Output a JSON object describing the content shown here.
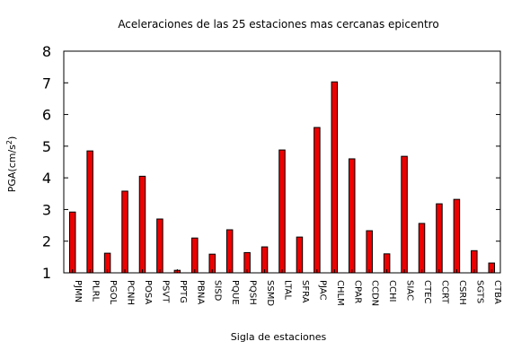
{
  "chart_data": {
    "type": "bar",
    "title": "Aceleraciones de las 25 estaciones mas cercanas epicentro",
    "xlabel": "Sigla de estaciones",
    "ylabel_main": "PGA(cm/s",
    "ylabel_sup": "2",
    "ylabel_close": ")",
    "ylim": [
      1,
      8
    ],
    "yticks": [
      "1",
      "2",
      "3",
      "4",
      "5",
      "6",
      "7",
      "8"
    ],
    "grid": false,
    "bar_color": "#ee0000",
    "categories": [
      "PJMN",
      "PLRL",
      "PGOL",
      "PCNH",
      "POSA",
      "PSVT",
      "PPTG",
      "PBNA",
      "SISD",
      "PQUE",
      "PQSH",
      "SSMD",
      "LTAL",
      "SFRA",
      "PJAC",
      "CHLM",
      "CPAR",
      "CCDN",
      "CCHI",
      "SIAC",
      "CTEC",
      "CCRT",
      "CSRH",
      "SGTS",
      "CTBA"
    ],
    "values": [
      2.92,
      4.85,
      1.62,
      3.58,
      4.05,
      2.7,
      1.08,
      2.1,
      1.59,
      2.36,
      1.64,
      1.82,
      4.88,
      2.13,
      5.59,
      7.03,
      4.6,
      2.33,
      1.6,
      4.68,
      2.56,
      3.18,
      3.32,
      1.7,
      1.31
    ]
  }
}
